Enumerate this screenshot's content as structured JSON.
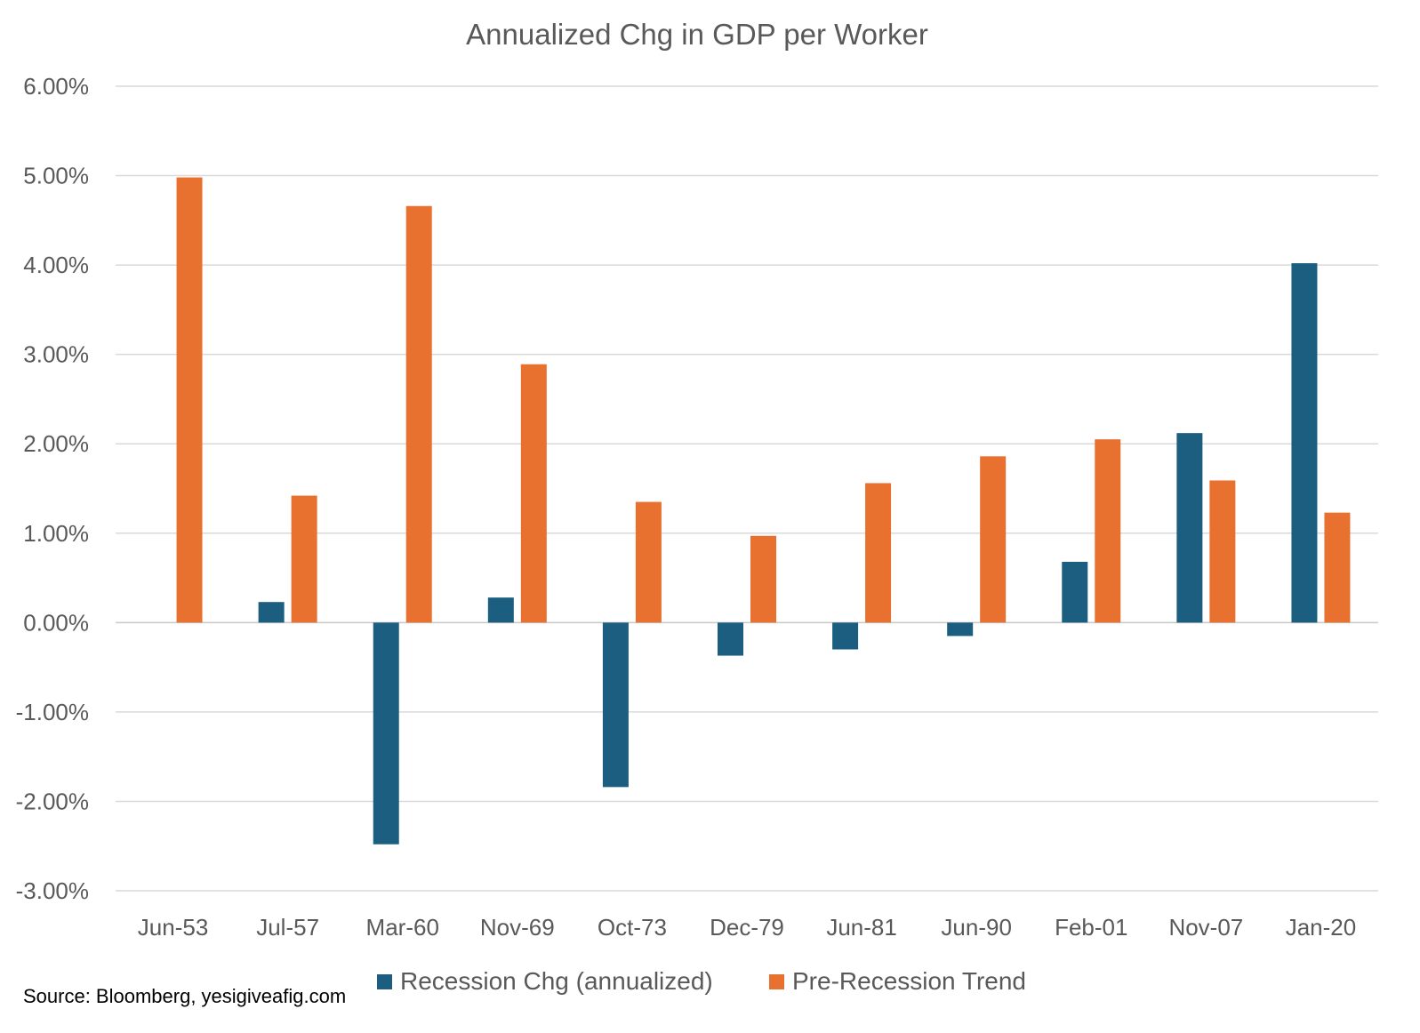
{
  "chart_data": {
    "type": "bar",
    "title": "Annualized Chg in GDP per Worker",
    "categories": [
      "Jun-53",
      "Jul-57",
      "Mar-60",
      "Nov-69",
      "Oct-73",
      "Dec-79",
      "Jun-81",
      "Jun-90",
      "Feb-01",
      "Nov-07",
      "Jan-20"
    ],
    "series": [
      {
        "name": "Recession Chg (annualized)",
        "color": "#1B5E80",
        "values": [
          null,
          0.23,
          -2.48,
          0.28,
          -1.84,
          -0.37,
          -0.3,
          -0.15,
          0.68,
          2.12,
          4.02
        ]
      },
      {
        "name": "Pre-Recession Trend",
        "color": "#E87130",
        "values": [
          4.98,
          1.42,
          4.66,
          2.89,
          1.35,
          0.97,
          1.56,
          1.86,
          2.05,
          1.59,
          1.23
        ]
      }
    ],
    "ylim": [
      -3,
      6
    ],
    "yticks": [
      6,
      5,
      4,
      3,
      2,
      1,
      0,
      -1,
      -2,
      -3
    ],
    "ytick_labels": [
      "6.00%",
      "5.00%",
      "4.00%",
      "3.00%",
      "2.00%",
      "1.00%",
      "0.00%",
      "-1.00%",
      "-2.00%",
      "-3.00%"
    ],
    "grid": true,
    "legend_position": "bottom"
  },
  "source": "Source: Bloomberg, yesigiveafig.com"
}
